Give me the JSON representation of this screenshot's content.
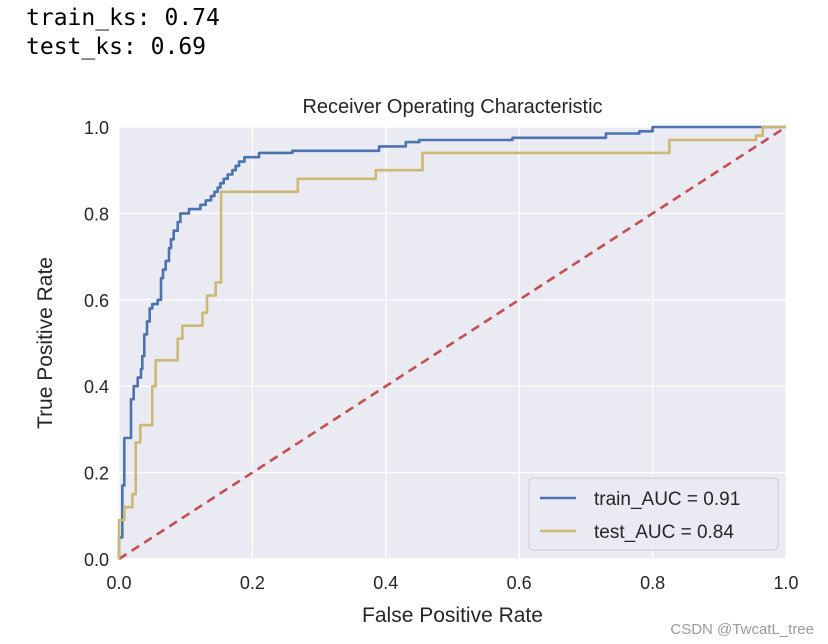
{
  "console": {
    "line1": "train_ks: 0.74",
    "line2": "test_ks: 0.69"
  },
  "watermark": "CSDN @TwcatL_tree",
  "colors": {
    "plot_bg": "#EAEAF2",
    "grid": "#FFFFFF",
    "train": "#4C72B0",
    "test": "#CCB974",
    "diagonal": "#C44E52"
  },
  "chart_data": {
    "type": "line",
    "title": "Receiver Operating Characteristic",
    "xlabel": "False Positive Rate",
    "ylabel": "True Positive Rate",
    "xlim": [
      0,
      1
    ],
    "ylim": [
      0,
      1
    ],
    "xticks": [
      "0.0",
      "0.2",
      "0.4",
      "0.6",
      "0.8",
      "1.0"
    ],
    "yticks": [
      "0.0",
      "0.2",
      "0.4",
      "0.6",
      "0.8",
      "1.0"
    ],
    "grid": true,
    "legend_position": "lower-right",
    "series": [
      {
        "name": "train_AUC = 0.91",
        "color": "#4C72B0",
        "style": "solid",
        "points": [
          [
            0,
            0
          ],
          [
            0,
            0.05
          ],
          [
            0.005,
            0.05
          ],
          [
            0.005,
            0.17
          ],
          [
            0.008,
            0.17
          ],
          [
            0.008,
            0.28
          ],
          [
            0.018,
            0.28
          ],
          [
            0.018,
            0.37
          ],
          [
            0.022,
            0.37
          ],
          [
            0.022,
            0.4
          ],
          [
            0.028,
            0.4
          ],
          [
            0.028,
            0.42
          ],
          [
            0.033,
            0.42
          ],
          [
            0.033,
            0.44
          ],
          [
            0.035,
            0.44
          ],
          [
            0.035,
            0.47
          ],
          [
            0.038,
            0.47
          ],
          [
            0.038,
            0.52
          ],
          [
            0.042,
            0.52
          ],
          [
            0.042,
            0.55
          ],
          [
            0.046,
            0.55
          ],
          [
            0.046,
            0.58
          ],
          [
            0.05,
            0.58
          ],
          [
            0.05,
            0.59
          ],
          [
            0.058,
            0.59
          ],
          [
            0.058,
            0.6
          ],
          [
            0.063,
            0.6
          ],
          [
            0.063,
            0.65
          ],
          [
            0.066,
            0.65
          ],
          [
            0.066,
            0.67
          ],
          [
            0.07,
            0.67
          ],
          [
            0.07,
            0.69
          ],
          [
            0.075,
            0.69
          ],
          [
            0.075,
            0.72
          ],
          [
            0.078,
            0.72
          ],
          [
            0.078,
            0.74
          ],
          [
            0.082,
            0.74
          ],
          [
            0.082,
            0.76
          ],
          [
            0.088,
            0.76
          ],
          [
            0.088,
            0.78
          ],
          [
            0.092,
            0.78
          ],
          [
            0.092,
            0.8
          ],
          [
            0.105,
            0.8
          ],
          [
            0.105,
            0.81
          ],
          [
            0.122,
            0.81
          ],
          [
            0.122,
            0.82
          ],
          [
            0.13,
            0.82
          ],
          [
            0.13,
            0.83
          ],
          [
            0.138,
            0.83
          ],
          [
            0.138,
            0.84
          ],
          [
            0.143,
            0.84
          ],
          [
            0.143,
            0.85
          ],
          [
            0.148,
            0.85
          ],
          [
            0.148,
            0.86
          ],
          [
            0.152,
            0.86
          ],
          [
            0.152,
            0.87
          ],
          [
            0.157,
            0.87
          ],
          [
            0.157,
            0.88
          ],
          [
            0.163,
            0.88
          ],
          [
            0.163,
            0.89
          ],
          [
            0.17,
            0.89
          ],
          [
            0.17,
            0.9
          ],
          [
            0.175,
            0.9
          ],
          [
            0.175,
            0.91
          ],
          [
            0.18,
            0.91
          ],
          [
            0.18,
            0.92
          ],
          [
            0.188,
            0.92
          ],
          [
            0.188,
            0.93
          ],
          [
            0.21,
            0.93
          ],
          [
            0.21,
            0.94
          ],
          [
            0.26,
            0.94
          ],
          [
            0.26,
            0.945
          ],
          [
            0.39,
            0.945
          ],
          [
            0.39,
            0.955
          ],
          [
            0.43,
            0.955
          ],
          [
            0.43,
            0.965
          ],
          [
            0.45,
            0.965
          ],
          [
            0.45,
            0.97
          ],
          [
            0.59,
            0.97
          ],
          [
            0.59,
            0.975
          ],
          [
            0.73,
            0.975
          ],
          [
            0.73,
            0.985
          ],
          [
            0.78,
            0.985
          ],
          [
            0.78,
            0.99
          ],
          [
            0.8,
            0.99
          ],
          [
            0.8,
            1.0
          ],
          [
            1.0,
            1.0
          ]
        ]
      },
      {
        "name": "test_AUC = 0.84",
        "color": "#CCB974",
        "style": "solid",
        "points": [
          [
            0,
            0
          ],
          [
            0,
            0.09
          ],
          [
            0.008,
            0.09
          ],
          [
            0.008,
            0.12
          ],
          [
            0.02,
            0.12
          ],
          [
            0.02,
            0.15
          ],
          [
            0.025,
            0.15
          ],
          [
            0.025,
            0.27
          ],
          [
            0.032,
            0.27
          ],
          [
            0.032,
            0.31
          ],
          [
            0.05,
            0.31
          ],
          [
            0.05,
            0.4
          ],
          [
            0.055,
            0.4
          ],
          [
            0.055,
            0.46
          ],
          [
            0.088,
            0.46
          ],
          [
            0.088,
            0.51
          ],
          [
            0.095,
            0.51
          ],
          [
            0.095,
            0.54
          ],
          [
            0.125,
            0.54
          ],
          [
            0.125,
            0.57
          ],
          [
            0.132,
            0.57
          ],
          [
            0.132,
            0.61
          ],
          [
            0.145,
            0.61
          ],
          [
            0.145,
            0.64
          ],
          [
            0.153,
            0.64
          ],
          [
            0.153,
            0.85
          ],
          [
            0.268,
            0.85
          ],
          [
            0.268,
            0.88
          ],
          [
            0.385,
            0.88
          ],
          [
            0.385,
            0.9
          ],
          [
            0.455,
            0.9
          ],
          [
            0.455,
            0.94
          ],
          [
            0.825,
            0.94
          ],
          [
            0.825,
            0.97
          ],
          [
            0.955,
            0.97
          ],
          [
            0.955,
            0.98
          ],
          [
            0.965,
            0.98
          ],
          [
            0.965,
            1.0
          ],
          [
            1.0,
            1.0
          ]
        ]
      },
      {
        "name": "",
        "color": "#C44E52",
        "style": "dashed",
        "points": [
          [
            0,
            0
          ],
          [
            1,
            1
          ]
        ]
      }
    ],
    "legend": [
      {
        "label": "train_AUC = 0.91",
        "color": "#4C72B0"
      },
      {
        "label": "test_AUC = 0.84",
        "color": "#CCB974"
      }
    ]
  }
}
